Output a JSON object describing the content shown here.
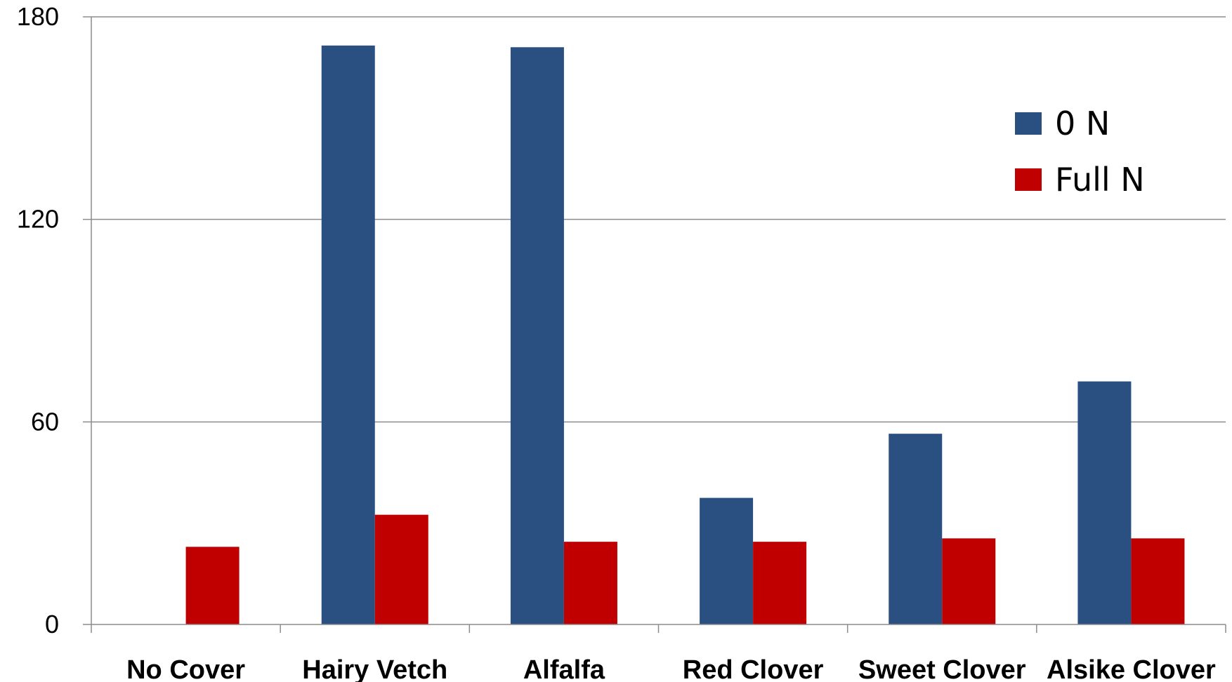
{
  "chart_data": {
    "type": "bar",
    "title": "",
    "xlabel": "",
    "ylabel": "",
    "categories": [
      "No Cover",
      "Hairy Vetch",
      "Alfalfa",
      "Red Clover",
      "Sweet Clover",
      "Alsike Clover"
    ],
    "series": [
      {
        "name": "0 N",
        "color": "#2A5082",
        "values": [
          0,
          171.5,
          171,
          37.5,
          56.5,
          72
        ]
      },
      {
        "name": "Full N",
        "color": "#C00000",
        "values": [
          23,
          32.5,
          24.5,
          24.5,
          25.5,
          25.5
        ]
      }
    ],
    "ylim": [
      0,
      180
    ],
    "yticks": [
      "0",
      "60",
      "120",
      "180"
    ],
    "grid": true,
    "legend": "top-right"
  }
}
